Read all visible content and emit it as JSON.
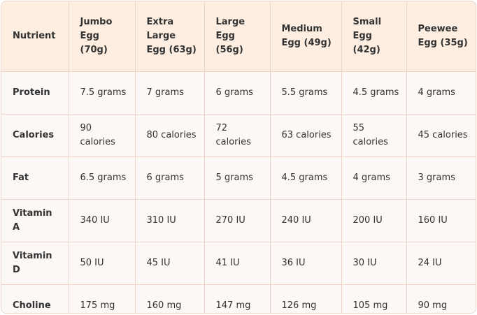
{
  "table": {
    "headers": [
      "Nutrient",
      "Jumbo Egg (70g)",
      "Extra Large Egg (63g)",
      "Large Egg (56g)",
      "Medium Egg (49g)",
      "Small Egg (42g)",
      "Peewee Egg (35g)"
    ],
    "rows": [
      [
        "Protein",
        "7.5 grams",
        "7 grams",
        "6 grams",
        "5.5 grams",
        "4.5 grams",
        "4 grams"
      ],
      [
        "Calories",
        "90 calories",
        "80 calories",
        "72 calories",
        "63 calories",
        "55 calories",
        "45 calories"
      ],
      [
        "Fat",
        "6.5 grams",
        "6 grams",
        "5 grams",
        "4.5 grams",
        "4 grams",
        "3 grams"
      ],
      [
        "Vitamin A",
        "340 IU",
        "310 IU",
        "270 IU",
        "240 IU",
        "200 IU",
        "160 IU"
      ],
      [
        "Vitamin D",
        "50 IU",
        "45 IU",
        "41 IU",
        "36 IU",
        "30 IU",
        "24 IU"
      ],
      [
        "Choline",
        "175 mg",
        "160 mg",
        "147 mg",
        "126 mg",
        "105 mg",
        "90 mg"
      ]
    ]
  },
  "colors": {
    "header_bg": "#fdeee1",
    "body_bg": "#fcf8f6",
    "border": "#ecd4c6",
    "text": "#333333"
  }
}
